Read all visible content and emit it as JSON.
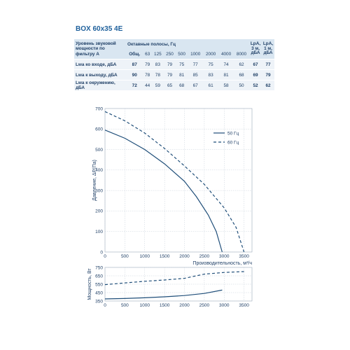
{
  "model": "BOX 60x35 4E",
  "table": {
    "header_label": "Уровень звуковой мощности по фильтру А",
    "octave_title": "Октавные полосы, Гц",
    "bands": [
      "Общ.",
      "63",
      "125",
      "250",
      "500",
      "1000",
      "2000",
      "4000",
      "8000"
    ],
    "lpa3_label": "LpA, 3 м, дБА",
    "lpa1_label": "LpA, 1 м, дБА",
    "rows": [
      {
        "label": "Lwa ко входе, дБА",
        "values": [
          "87",
          "79",
          "83",
          "79",
          "75",
          "77",
          "75",
          "74",
          "62"
        ],
        "lpa3": "67",
        "lpa1": "77"
      },
      {
        "label": "Lwa к выходу, дБА",
        "values": [
          "90",
          "78",
          "78",
          "79",
          "81",
          "85",
          "83",
          "81",
          "68"
        ],
        "lpa3": "69",
        "lpa1": "79"
      },
      {
        "label": "Lwa к окружению, дБА",
        "values": [
          "72",
          "44",
          "59",
          "65",
          "68",
          "67",
          "61",
          "58",
          "50"
        ],
        "lpa3": "52",
        "lpa1": "62"
      }
    ]
  },
  "chart_data": [
    {
      "type": "line",
      "xlabel": "Производительность, м³/ч",
      "ylabel": "Давление, ΔP(Па)",
      "xlim": [
        0,
        3700
      ],
      "ylim": [
        0,
        700
      ],
      "xticks": [
        0,
        500,
        1000,
        1500,
        2000,
        2500,
        3000,
        3500
      ],
      "yticks": [
        0,
        100,
        200,
        300,
        400,
        500,
        600,
        700
      ],
      "grid": true,
      "legend_position": "right",
      "series": [
        {
          "name": "50 Гц",
          "style": "solid",
          "color": "#1f4e79",
          "x": [
            0,
            500,
            1000,
            1500,
            2000,
            2300,
            2600,
            2800,
            2950
          ],
          "y": [
            595,
            555,
            500,
            430,
            345,
            270,
            180,
            100,
            0
          ]
        },
        {
          "name": "60 Гц",
          "style": "dashed",
          "color": "#1f4e79",
          "x": [
            0,
            500,
            1000,
            1500,
            2000,
            2500,
            3000,
            3300,
            3500
          ],
          "y": [
            685,
            640,
            580,
            505,
            420,
            330,
            215,
            120,
            0
          ]
        }
      ]
    },
    {
      "type": "line",
      "xlabel": "",
      "ylabel": "Мощность, Вт",
      "xlim": [
        0,
        3700
      ],
      "ylim": [
        350,
        750
      ],
      "xticks": [
        0,
        500,
        1000,
        1500,
        2000,
        2500,
        3000,
        3500
      ],
      "yticks": [
        350,
        450,
        550,
        650,
        750
      ],
      "grid": true,
      "series": [
        {
          "name": "50 Гц",
          "style": "solid",
          "color": "#1f4e79",
          "x": [
            0,
            500,
            1000,
            1500,
            2000,
            2500,
            2950
          ],
          "y": [
            375,
            380,
            388,
            400,
            415,
            440,
            480
          ]
        },
        {
          "name": "60 Гц",
          "style": "dashed",
          "color": "#1f4e79",
          "x": [
            0,
            500,
            1000,
            1500,
            2000,
            2500,
            3000,
            3500
          ],
          "y": [
            545,
            565,
            585,
            600,
            620,
            670,
            690,
            700
          ]
        }
      ]
    }
  ],
  "badges": {
    "left_icon": "eco-leaf-icon",
    "right_icon": "eco-leaf-icon",
    "colors": [
      "#3aa55d",
      "#3f7ba5"
    ]
  }
}
